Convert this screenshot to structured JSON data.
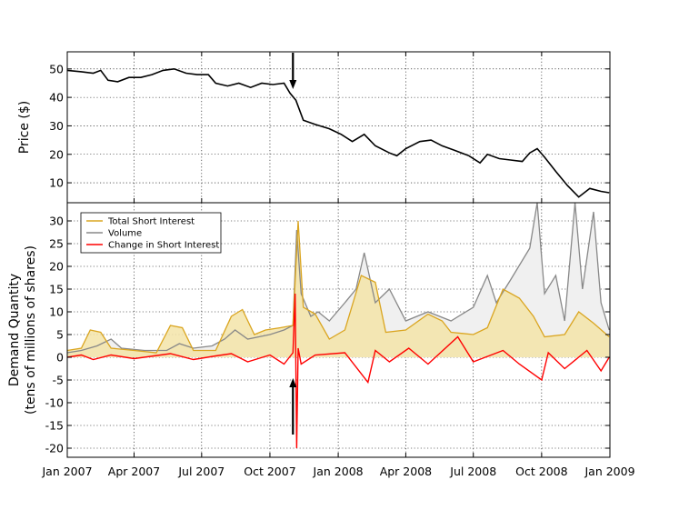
{
  "chart_data": [
    {
      "type": "line",
      "ylabel": "Price ($)",
      "ylim": [
        3,
        56
      ],
      "yticks": [
        10,
        20,
        30,
        40,
        50
      ],
      "grid": true,
      "x_is_shared": true,
      "series": [
        {
          "color": "#000000",
          "points": [
            [
              "2007-01-01",
              49.5
            ],
            [
              "2007-01-20",
              49.0
            ],
            [
              "2007-02-05",
              48.5
            ],
            [
              "2007-02-15",
              49.5
            ],
            [
              "2007-02-25",
              46.0
            ],
            [
              "2007-03-10",
              45.5
            ],
            [
              "2007-03-25",
              47.0
            ],
            [
              "2007-04-10",
              47.0
            ],
            [
              "2007-04-25",
              48.0
            ],
            [
              "2007-05-10",
              49.5
            ],
            [
              "2007-05-25",
              50.0
            ],
            [
              "2007-06-10",
              48.5
            ],
            [
              "2007-06-25",
              48.0
            ],
            [
              "2007-07-10",
              48.0
            ],
            [
              "2007-07-20",
              45.0
            ],
            [
              "2007-08-05",
              44.0
            ],
            [
              "2007-08-20",
              45.0
            ],
            [
              "2007-09-05",
              43.5
            ],
            [
              "2007-09-20",
              45.0
            ],
            [
              "2007-10-05",
              44.5
            ],
            [
              "2007-10-20",
              45.0
            ],
            [
              "2007-10-28",
              41.5
            ],
            [
              "2007-11-05",
              39.0
            ],
            [
              "2007-11-15",
              32.0
            ],
            [
              "2007-12-01",
              30.5
            ],
            [
              "2007-12-20",
              29.0
            ],
            [
              "2008-01-05",
              27.0
            ],
            [
              "2008-01-20",
              24.5
            ],
            [
              "2008-02-05",
              27.0
            ],
            [
              "2008-02-20",
              23.0
            ],
            [
              "2008-03-10",
              20.5
            ],
            [
              "2008-03-20",
              19.5
            ],
            [
              "2008-04-01",
              22.0
            ],
            [
              "2008-04-20",
              24.5
            ],
            [
              "2008-05-05",
              25.0
            ],
            [
              "2008-05-20",
              23.0
            ],
            [
              "2008-06-05",
              21.5
            ],
            [
              "2008-06-25",
              19.5
            ],
            [
              "2008-07-10",
              17.0
            ],
            [
              "2008-07-20",
              20.0
            ],
            [
              "2008-08-05",
              18.5
            ],
            [
              "2008-08-20",
              18.0
            ],
            [
              "2008-09-05",
              17.5
            ],
            [
              "2008-09-15",
              20.5
            ],
            [
              "2008-09-25",
              22.0
            ],
            [
              "2008-10-05",
              19.0
            ],
            [
              "2008-10-20",
              14.0
            ],
            [
              "2008-11-05",
              9.0
            ],
            [
              "2008-11-20",
              5.0
            ],
            [
              "2008-12-05",
              8.0
            ],
            [
              "2008-12-20",
              7.0
            ],
            [
              "2008-12-31",
              6.5
            ]
          ]
        }
      ],
      "annotations": [
        {
          "type": "arrow",
          "x": "2007-11-01",
          "direction": "down"
        }
      ]
    },
    {
      "type": "area",
      "ylabel": "Demand Quantity",
      "ylabel2": "(tens of millions of shares)",
      "ylim": [
        -22,
        34
      ],
      "yticks": [
        -20,
        -15,
        -10,
        -5,
        0,
        5,
        10,
        15,
        20,
        25,
        30
      ],
      "xlim": [
        "2007-01-01",
        "2009-01-01"
      ],
      "xticks": [
        "Jan 2007",
        "Apr 2007",
        "Jul 2007",
        "Oct 2007",
        "Jan 2008",
        "Apr 2008",
        "Jul 2008",
        "Oct 2008",
        "Jan 2009"
      ],
      "grid": true,
      "legend_position": "top-left",
      "series": [
        {
          "name": "Total Short Interest",
          "color": "#daa520",
          "fill": "#f3e4a8",
          "points": [
            [
              "2007-01-01",
              1.5
            ],
            [
              "2007-01-20",
              2.0
            ],
            [
              "2007-02-01",
              6.0
            ],
            [
              "2007-02-15",
              5.5
            ],
            [
              "2007-03-01",
              2.0
            ],
            [
              "2007-04-01",
              1.5
            ],
            [
              "2007-05-01",
              1.0
            ],
            [
              "2007-05-20",
              7.0
            ],
            [
              "2007-06-05",
              6.5
            ],
            [
              "2007-06-20",
              1.5
            ],
            [
              "2007-07-20",
              1.5
            ],
            [
              "2007-08-10",
              9.0
            ],
            [
              "2007-08-25",
              10.5
            ],
            [
              "2007-09-10",
              5.0
            ],
            [
              "2007-09-25",
              6.0
            ],
            [
              "2007-10-15",
              6.5
            ],
            [
              "2007-11-01",
              7.0
            ],
            [
              "2007-11-08",
              30.0
            ],
            [
              "2007-11-15",
              11.0
            ],
            [
              "2007-12-01",
              9.5
            ],
            [
              "2007-12-20",
              4.0
            ],
            [
              "2008-01-10",
              6.0
            ],
            [
              "2008-02-01",
              18.0
            ],
            [
              "2008-02-20",
              16.5
            ],
            [
              "2008-03-05",
              5.5
            ],
            [
              "2008-04-01",
              6.0
            ],
            [
              "2008-05-01",
              9.5
            ],
            [
              "2008-05-20",
              8.0
            ],
            [
              "2008-06-01",
              5.5
            ],
            [
              "2008-07-01",
              5.0
            ],
            [
              "2008-07-20",
              6.5
            ],
            [
              "2008-08-10",
              15.0
            ],
            [
              "2008-09-01",
              13.0
            ],
            [
              "2008-09-20",
              9.0
            ],
            [
              "2008-10-05",
              4.5
            ],
            [
              "2008-11-01",
              5.0
            ],
            [
              "2008-11-20",
              10.0
            ],
            [
              "2008-12-10",
              7.5
            ],
            [
              "2008-12-31",
              4.5
            ]
          ]
        },
        {
          "name": "Volume",
          "color": "#888888",
          "fill": "#f0f0f0",
          "points": [
            [
              "2007-01-01",
              1.0
            ],
            [
              "2007-01-20",
              1.5
            ],
            [
              "2007-02-10",
              2.5
            ],
            [
              "2007-03-01",
              4.0
            ],
            [
              "2007-03-15",
              2.0
            ],
            [
              "2007-04-15",
              1.5
            ],
            [
              "2007-05-15",
              1.5
            ],
            [
              "2007-06-01",
              3.0
            ],
            [
              "2007-06-20",
              2.0
            ],
            [
              "2007-07-15",
              2.5
            ],
            [
              "2007-08-01",
              4.0
            ],
            [
              "2007-08-15",
              6.0
            ],
            [
              "2007-09-01",
              4.0
            ],
            [
              "2007-10-01",
              5.0
            ],
            [
              "2007-10-20",
              6.0
            ],
            [
              "2007-11-01",
              7.0
            ],
            [
              "2007-11-06",
              28.0
            ],
            [
              "2007-11-12",
              14.0
            ],
            [
              "2007-11-25",
              9.0
            ],
            [
              "2007-12-05",
              10.0
            ],
            [
              "2007-12-20",
              8.0
            ],
            [
              "2008-01-10",
              12.0
            ],
            [
              "2008-01-25",
              15.0
            ],
            [
              "2008-02-05",
              23.0
            ],
            [
              "2008-02-20",
              12.0
            ],
            [
              "2008-03-10",
              15.0
            ],
            [
              "2008-04-01",
              8.0
            ],
            [
              "2008-05-01",
              10.0
            ],
            [
              "2008-06-01",
              8.0
            ],
            [
              "2008-07-01",
              11.0
            ],
            [
              "2008-07-20",
              18.0
            ],
            [
              "2008-08-01",
              12.0
            ],
            [
              "2008-08-20",
              17.0
            ],
            [
              "2008-09-15",
              24.0
            ],
            [
              "2008-09-25",
              34.0
            ],
            [
              "2008-10-05",
              14.0
            ],
            [
              "2008-10-20",
              18.0
            ],
            [
              "2008-11-01",
              8.0
            ],
            [
              "2008-11-15",
              34.0
            ],
            [
              "2008-11-25",
              15.0
            ],
            [
              "2008-12-10",
              32.0
            ],
            [
              "2008-12-20",
              12.0
            ],
            [
              "2008-12-31",
              6.0
            ]
          ]
        },
        {
          "name": "Change in Short Interest",
          "color": "#ff0000",
          "points": [
            [
              "2007-01-01",
              0.0
            ],
            [
              "2007-01-20",
              0.5
            ],
            [
              "2007-02-05",
              -0.5
            ],
            [
              "2007-03-01",
              0.5
            ],
            [
              "2007-04-01",
              -0.3
            ],
            [
              "2007-05-20",
              0.8
            ],
            [
              "2007-06-20",
              -0.5
            ],
            [
              "2007-07-20",
              0.3
            ],
            [
              "2007-08-10",
              0.8
            ],
            [
              "2007-09-01",
              -1.0
            ],
            [
              "2007-10-01",
              0.5
            ],
            [
              "2007-10-20",
              -1.5
            ],
            [
              "2007-11-01",
              1.0
            ],
            [
              "2007-11-04",
              14.0
            ],
            [
              "2007-11-06",
              -20.0
            ],
            [
              "2007-11-08",
              2.0
            ],
            [
              "2007-11-12",
              -1.5
            ],
            [
              "2007-12-01",
              0.5
            ],
            [
              "2008-01-10",
              1.0
            ],
            [
              "2008-02-10",
              -5.5
            ],
            [
              "2008-02-20",
              1.5
            ],
            [
              "2008-03-10",
              -1.0
            ],
            [
              "2008-04-05",
              2.0
            ],
            [
              "2008-05-01",
              -1.5
            ],
            [
              "2008-06-10",
              4.5
            ],
            [
              "2008-07-01",
              -1.0
            ],
            [
              "2008-08-10",
              1.5
            ],
            [
              "2008-09-01",
              -1.5
            ],
            [
              "2008-10-01",
              -5.0
            ],
            [
              "2008-10-10",
              1.0
            ],
            [
              "2008-11-01",
              -2.5
            ],
            [
              "2008-12-01",
              1.5
            ],
            [
              "2008-12-20",
              -3.0
            ],
            [
              "2008-12-31",
              0.0
            ]
          ]
        }
      ],
      "annotations": [
        {
          "type": "arrow",
          "x": "2007-11-01",
          "direction": "up"
        }
      ]
    }
  ]
}
